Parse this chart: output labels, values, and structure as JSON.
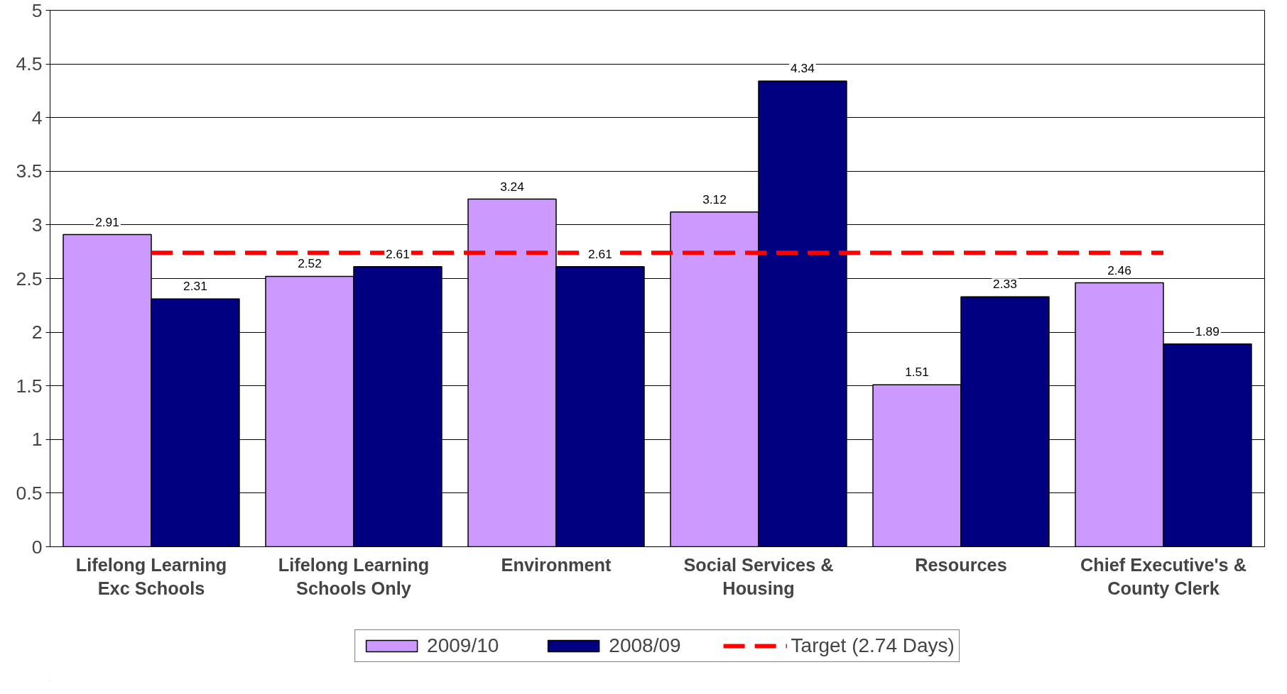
{
  "chart_data": {
    "type": "bar",
    "categories": [
      "Lifelong Learning\nExc Schools",
      "Lifelong Learning\nSchools Only",
      "Environment",
      "Social Services &\nHousing",
      "Resources",
      "Chief Executive's &\nCounty Clerk"
    ],
    "series": [
      {
        "name": "2009/10",
        "color": "#cc99ff",
        "values": [
          2.91,
          2.52,
          3.24,
          3.12,
          1.51,
          2.46
        ],
        "value_labels": [
          "2.91",
          "2.52",
          "3.24",
          "3.12",
          "1.51",
          "2.46"
        ]
      },
      {
        "name": "2008/09",
        "color": "#000080",
        "values": [
          2.31,
          2.61,
          2.61,
          4.34,
          2.33,
          1.89
        ],
        "value_labels": [
          "2.31",
          "2.61",
          "2.61",
          "4.34",
          "2.33",
          "1.89"
        ]
      },
      {
        "name": "Target (2.74 Days)",
        "type": "line",
        "color": "#ff0000",
        "line_style": "dashed",
        "values": [
          2.74,
          2.74,
          2.74,
          2.74,
          2.74,
          2.74
        ]
      }
    ],
    "ylim": [
      0,
      5
    ],
    "yticks": [
      0,
      0.5,
      1,
      1.5,
      2,
      2.5,
      3,
      3.5,
      4,
      4.5,
      5
    ],
    "grid": "y",
    "legend": "bottom"
  }
}
